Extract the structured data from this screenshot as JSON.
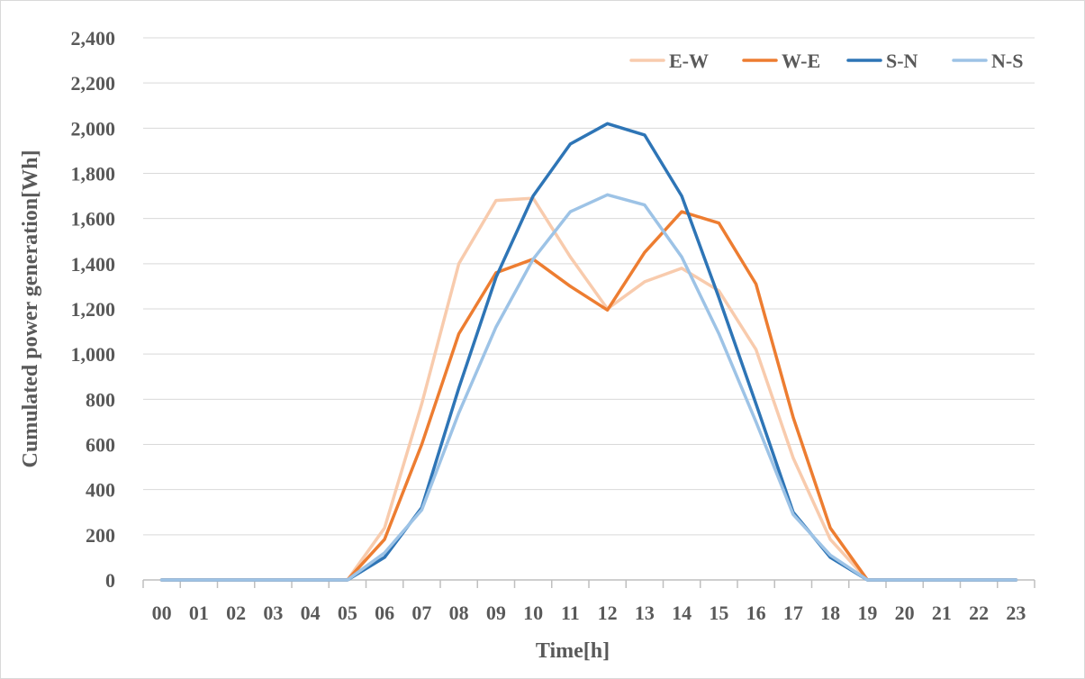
{
  "chart_data": {
    "type": "line",
    "title": "",
    "xlabel": "Time[h]",
    "ylabel": "Cumulated  power generation[Wh]",
    "ylim": [
      0,
      2400
    ],
    "yticks": [
      0,
      200,
      400,
      600,
      800,
      1000,
      1200,
      1400,
      1600,
      1800,
      2000,
      2200,
      2400
    ],
    "ytick_labels": [
      "0",
      "200",
      "400",
      "600",
      "800",
      "1,000",
      "1,200",
      "1,400",
      "1,600",
      "1,800",
      "2,000",
      "2,200",
      "2,400"
    ],
    "grid": true,
    "legend_position": "top-right",
    "categories": [
      "00",
      "01",
      "02",
      "03",
      "04",
      "05",
      "06",
      "07",
      "08",
      "09",
      "10",
      "11",
      "12",
      "13",
      "14",
      "15",
      "16",
      "17",
      "18",
      "19",
      "20",
      "21",
      "22",
      "23"
    ],
    "series": [
      {
        "name": "E-W",
        "color": "#f8cbad",
        "values": [
          0,
          0,
          0,
          0,
          0,
          0,
          230,
          780,
          1400,
          1680,
          1690,
          1430,
          1200,
          1320,
          1380,
          1280,
          1020,
          540,
          180,
          0,
          0,
          0,
          0,
          0
        ]
      },
      {
        "name": "W-E",
        "color": "#ed7d31",
        "values": [
          0,
          0,
          0,
          0,
          0,
          0,
          180,
          600,
          1090,
          1360,
          1420,
          1300,
          1195,
          1450,
          1630,
          1580,
          1310,
          720,
          230,
          0,
          0,
          0,
          0,
          0
        ]
      },
      {
        "name": "S-N",
        "color": "#2e75b6",
        "values": [
          0,
          0,
          0,
          0,
          0,
          0,
          100,
          320,
          850,
          1340,
          1700,
          1930,
          2020,
          1970,
          1700,
          1250,
          780,
          300,
          100,
          0,
          0,
          0,
          0,
          0
        ]
      },
      {
        "name": "N-S",
        "color": "#9dc3e6",
        "values": [
          0,
          0,
          0,
          0,
          0,
          0,
          120,
          310,
          740,
          1120,
          1420,
          1630,
          1705,
          1660,
          1430,
          1090,
          700,
          290,
          110,
          0,
          0,
          0,
          0,
          0
        ]
      }
    ]
  }
}
